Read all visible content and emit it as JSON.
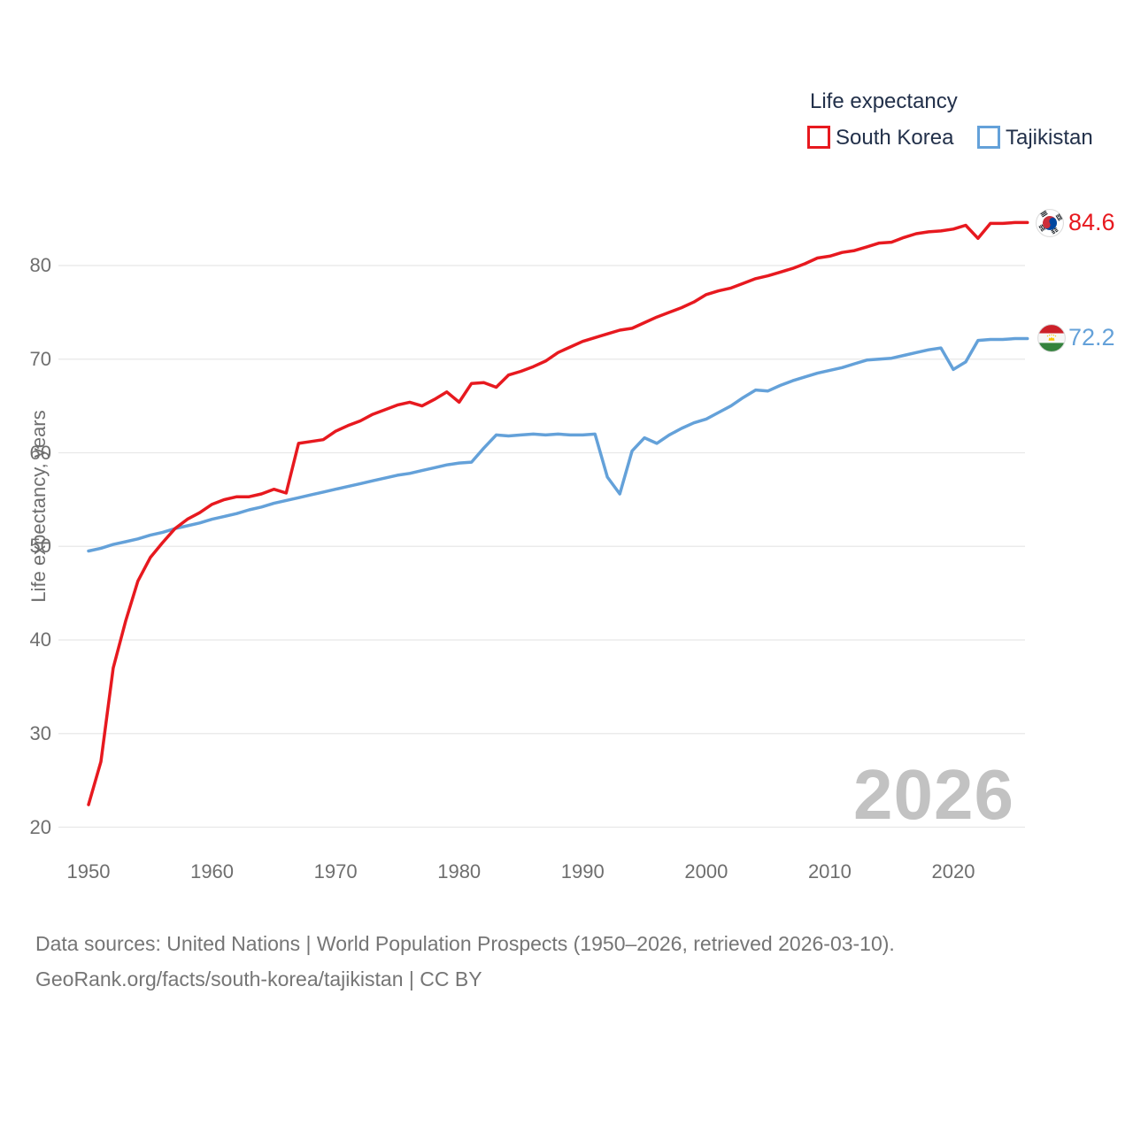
{
  "legend": {
    "title": "Life expectancy",
    "items": [
      {
        "label": "South Korea",
        "color": "#e7191f"
      },
      {
        "label": "Tajikistan",
        "color": "#64a1d9"
      }
    ]
  },
  "end_labels": [
    {
      "value": "84.6",
      "color": "#e7191f",
      "flag": "south-korea-flag"
    },
    {
      "value": "72.2",
      "color": "#64a1d9",
      "flag": "tajikistan-flag"
    }
  ],
  "watermark": "2026",
  "footer": {
    "line1": "Data sources: United Nations | World Population Prospects (1950–2026, retrieved 2026-03-10).",
    "line2": "GeoRank.org/facts/south-korea/tajikistan | CC BY"
  },
  "chart_data": {
    "type": "line",
    "title": "Life expectancy",
    "xlabel": "",
    "ylabel": "Life expectancy, years",
    "ylim": [
      18,
      87
    ],
    "xlim": [
      1950,
      2026
    ],
    "grid": true,
    "legend_position": "top-right",
    "yticks": [
      20,
      30,
      40,
      50,
      60,
      70,
      80
    ],
    "xticks": [
      1950,
      1960,
      1970,
      1980,
      1990,
      2000,
      2010,
      2020
    ],
    "x_start_year": 1950,
    "series": [
      {
        "name": "South Korea",
        "color": "#e7191f",
        "end_value": 84.6,
        "values": [
          22.4,
          27.0,
          37.0,
          42.0,
          46.3,
          48.8,
          50.4,
          51.9,
          52.9,
          53.6,
          54.5,
          55.0,
          55.3,
          55.3,
          55.6,
          56.1,
          55.7,
          61.0,
          61.2,
          61.4,
          62.3,
          62.9,
          63.4,
          64.1,
          64.6,
          65.1,
          65.4,
          65.0,
          65.7,
          66.5,
          65.4,
          67.4,
          67.5,
          67.0,
          68.3,
          68.7,
          69.2,
          69.8,
          70.7,
          71.3,
          71.9,
          72.3,
          72.7,
          73.1,
          73.3,
          73.9,
          74.5,
          75.0,
          75.5,
          76.1,
          76.9,
          77.3,
          77.6,
          78.1,
          78.6,
          78.9,
          79.3,
          79.7,
          80.2,
          80.8,
          81.0,
          81.4,
          81.6,
          82.0,
          82.4,
          82.5,
          83.0,
          83.4,
          83.6,
          83.7,
          83.9,
          84.3,
          82.9,
          84.5,
          84.5,
          84.6,
          84.6
        ]
      },
      {
        "name": "Tajikistan",
        "color": "#64a1d9",
        "end_value": 72.2,
        "values": [
          49.5,
          49.8,
          50.2,
          50.5,
          50.8,
          51.2,
          51.5,
          51.9,
          52.2,
          52.5,
          52.9,
          53.2,
          53.5,
          53.9,
          54.2,
          54.6,
          54.9,
          55.2,
          55.5,
          55.8,
          56.1,
          56.4,
          56.7,
          57.0,
          57.3,
          57.6,
          57.8,
          58.1,
          58.4,
          58.7,
          58.9,
          59.0,
          60.5,
          61.9,
          61.8,
          61.9,
          62.0,
          61.9,
          62.0,
          61.9,
          61.9,
          62.0,
          57.4,
          55.6,
          60.2,
          61.6,
          61.0,
          61.9,
          62.6,
          63.2,
          63.6,
          64.3,
          65.0,
          65.9,
          66.7,
          66.6,
          67.2,
          67.7,
          68.1,
          68.5,
          68.8,
          69.1,
          69.5,
          69.9,
          70.0,
          70.1,
          70.4,
          70.7,
          71.0,
          71.2,
          68.9,
          69.7,
          72.0,
          72.1,
          72.1,
          72.2,
          72.2
        ]
      }
    ]
  }
}
